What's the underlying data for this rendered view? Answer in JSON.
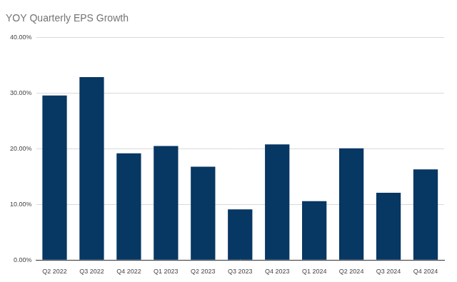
{
  "chart_data": {
    "type": "bar",
    "title": "YOY Quarterly EPS Growth",
    "categories": [
      "Q2 2022",
      "Q3 2022",
      "Q4 2022",
      "Q1 2023",
      "Q2 2023",
      "Q3 2023",
      "Q4 2023",
      "Q1 2024",
      "Q2 2024",
      "Q3 2024",
      "Q4 2024"
    ],
    "values": [
      29.6,
      32.9,
      19.2,
      20.5,
      16.8,
      9.1,
      20.8,
      10.6,
      20.1,
      12.1,
      16.3
    ],
    "color": "#073763",
    "ylim": [
      0,
      40
    ],
    "yticks": [
      {
        "value": 0,
        "label": "0.00%"
      },
      {
        "value": 10,
        "label": "10.00%"
      },
      {
        "value": 20,
        "label": "20.00%"
      },
      {
        "value": 30,
        "label": "30.00%"
      },
      {
        "value": 40,
        "label": "40.00%"
      }
    ],
    "grid": true
  }
}
